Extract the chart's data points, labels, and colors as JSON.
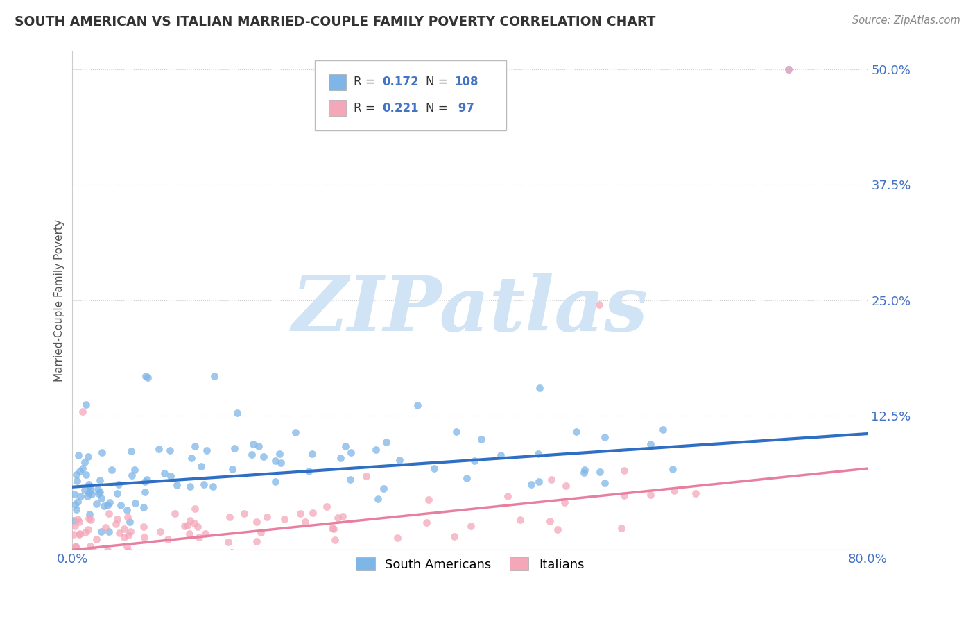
{
  "title": "SOUTH AMERICAN VS ITALIAN MARRIED-COUPLE FAMILY POVERTY CORRELATION CHART",
  "source_text": "Source: ZipAtlas.com",
  "ylabel": "Married-Couple Family Poverty",
  "xlim": [
    0.0,
    0.8
  ],
  "ylim": [
    -0.02,
    0.52
  ],
  "ytick_vals": [
    0.0,
    0.125,
    0.25,
    0.375,
    0.5
  ],
  "ytick_labels": [
    "",
    "12.5%",
    "25.0%",
    "37.5%",
    "50.0%"
  ],
  "blue_R": 0.172,
  "blue_N": 108,
  "pink_R": 0.221,
  "pink_N": 97,
  "blue_color": "#7EB6E8",
  "pink_color": "#F4A7B9",
  "blue_line_color": "#2E6FC4",
  "pink_line_color": "#E87FA0",
  "legend_label_blue": "South Americans",
  "legend_label_pink": "Italians",
  "watermark_text": "ZIPatlas",
  "watermark_color": "#D0E4F5",
  "background_color": "#FFFFFF",
  "grid_color": "#CCCCCC",
  "title_color": "#333333",
  "axis_label_color": "#555555",
  "tick_label_color": "#4472C4",
  "blue_intercept": 0.048,
  "blue_slope": 0.072,
  "pink_intercept": -0.02,
  "pink_slope": 0.11
}
